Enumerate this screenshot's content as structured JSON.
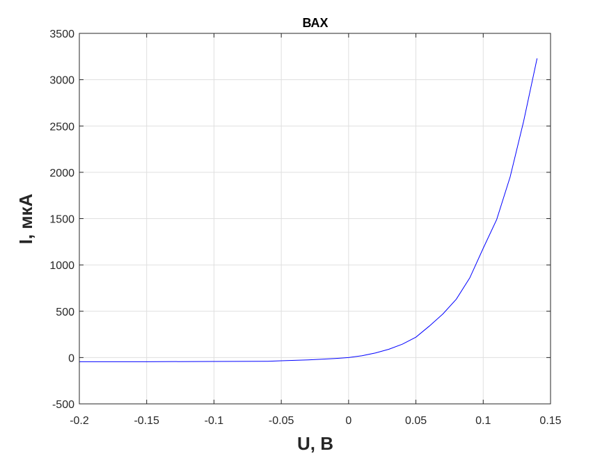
{
  "chart_data": {
    "type": "line",
    "title": "ВАХ",
    "xlabel": "U, В",
    "ylabel": "I, мкА",
    "xlim": [
      -0.2,
      0.15
    ],
    "ylim": [
      -500,
      3500
    ],
    "x_ticks": [
      "-0.2",
      "-0.15",
      "-0.1",
      "-0.05",
      "0",
      "0.05",
      "0.1",
      "0.15"
    ],
    "y_ticks": [
      "-500",
      "0",
      "500",
      "1000",
      "1500",
      "2000",
      "2500",
      "3000",
      "3500"
    ],
    "grid": true,
    "series": [
      {
        "color": "#0000ff",
        "x": [
          -0.2,
          -0.15,
          -0.1,
          -0.06,
          -0.05,
          -0.04,
          -0.03,
          -0.02,
          -0.01,
          0,
          0.01,
          0.02,
          0.03,
          0.04,
          0.05,
          0.06,
          0.07,
          0.08,
          0.09,
          0.1,
          0.11,
          0.12,
          0.13,
          0.14
        ],
        "y": [
          -45,
          -45,
          -42,
          -40,
          -35,
          -30,
          -25,
          -18,
          -10,
          0,
          20,
          50,
          90,
          145,
          220,
          340,
          470,
          630,
          860,
          1180,
          1490,
          1950,
          2550,
          3230
        ]
      }
    ]
  }
}
